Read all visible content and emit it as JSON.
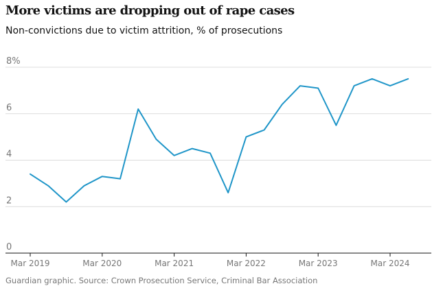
{
  "title": "More victims are dropping out of rape cases",
  "subtitle": "Non-convictions due to victim attrition, % of prosecutions",
  "source": "Guardian graphic. Source: Crown Prosecution Service, Criminal Bar Association",
  "colors": {
    "line": "#1e95c8",
    "grid": "#dcdcdc",
    "axis": "#121212",
    "tick_label": "#767676",
    "source_text": "#767676"
  },
  "chart_data": {
    "type": "line",
    "title": "More victims are dropping out of rape cases",
    "subtitle": "Non-convictions due to victim attrition, % of prosecutions",
    "xlabel": "",
    "ylabel": "",
    "ylim": [
      0,
      8
    ],
    "y_ticks": [
      {
        "value": 0,
        "label": "0"
      },
      {
        "value": 2,
        "label": "2"
      },
      {
        "value": 4,
        "label": "4"
      },
      {
        "value": 6,
        "label": "6"
      },
      {
        "value": 8,
        "label": "8%"
      }
    ],
    "x_ticks": [
      {
        "index": 0,
        "label": "Mar 2019"
      },
      {
        "index": 4,
        "label": "Mar 2020"
      },
      {
        "index": 8,
        "label": "Mar 2021"
      },
      {
        "index": 12,
        "label": "Mar 2022"
      },
      {
        "index": 16,
        "label": "Mar 2023"
      },
      {
        "index": 20,
        "label": "Mar 2024"
      }
    ],
    "grid": true,
    "series": [
      {
        "name": "Non-convictions due to victim attrition",
        "x": [
          "Mar 2019",
          "Jun 2019",
          "Sep 2019",
          "Dec 2019",
          "Mar 2020",
          "Jun 2020",
          "Sep 2020",
          "Dec 2020",
          "Mar 2021",
          "Jun 2021",
          "Sep 2021",
          "Dec 2021",
          "Mar 2022",
          "Jun 2022",
          "Sep 2022",
          "Dec 2022",
          "Mar 2023",
          "Jun 2023",
          "Sep 2023",
          "Dec 2023",
          "Mar 2024",
          "Jun 2024"
        ],
        "values": [
          3.4,
          2.9,
          2.2,
          2.9,
          3.3,
          3.2,
          6.2,
          4.9,
          4.2,
          4.5,
          4.3,
          2.6,
          5.0,
          5.3,
          6.4,
          7.2,
          7.1,
          5.5,
          7.2,
          7.5,
          7.2,
          7.5
        ]
      }
    ]
  }
}
